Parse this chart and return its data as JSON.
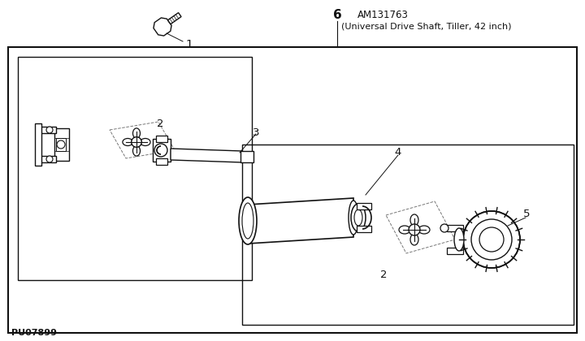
{
  "bg_color": "#ffffff",
  "border_color": "#111111",
  "title_part_num": "AM131763",
  "title_desc": "(Universal Drive Shaft, Tiller, 42 inch)",
  "part_label_6": "6",
  "part_label_1": "1",
  "part_label_2a": "2",
  "part_label_2b": "2",
  "part_label_3": "3",
  "part_label_4": "4",
  "part_label_5": "5",
  "footer_id": "PU07899",
  "line_color": "#111111",
  "gray_fill": "#cccccc",
  "dark_gray": "#555555"
}
